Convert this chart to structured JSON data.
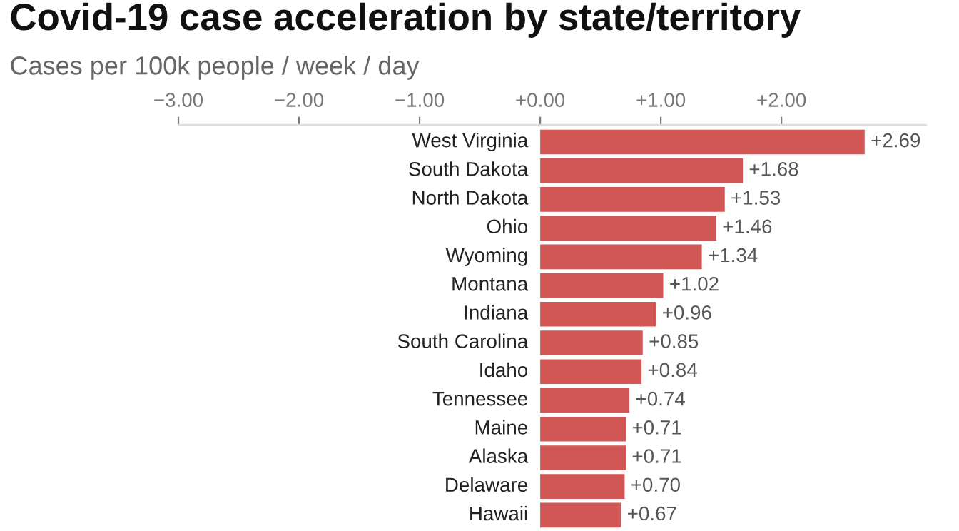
{
  "chart_data": {
    "type": "bar",
    "orientation": "horizontal",
    "title": "Covid-19 case acceleration by state/territory",
    "subtitle": "Cases per 100k people / week / day",
    "categories": [
      "West Virginia",
      "South Dakota",
      "North Dakota",
      "Ohio",
      "Wyoming",
      "Montana",
      "Indiana",
      "South Carolina",
      "Idaho",
      "Tennessee",
      "Maine",
      "Alaska",
      "Delaware",
      "Hawaii"
    ],
    "values": [
      2.69,
      1.68,
      1.53,
      1.46,
      1.34,
      1.02,
      0.96,
      0.85,
      0.84,
      0.74,
      0.71,
      0.71,
      0.7,
      0.67
    ],
    "value_labels": [
      "+2.69",
      "+1.68",
      "+1.53",
      "+1.46",
      "+1.34",
      "+1.02",
      "+0.96",
      "+0.85",
      "+0.84",
      "+0.74",
      "+0.71",
      "+0.71",
      "+0.70",
      "+0.67"
    ],
    "color": "#d15656",
    "xlim": [
      -3.0,
      3.2
    ],
    "xticks": [
      {
        "value": -3,
        "label": "−3.00"
      },
      {
        "value": -2,
        "label": "−2.00"
      },
      {
        "value": -1,
        "label": "−1.00"
      },
      {
        "value": 0,
        "label": "+0.00"
      },
      {
        "value": 1,
        "label": "+1.00"
      },
      {
        "value": 2,
        "label": "+2.00"
      }
    ],
    "grid": false,
    "legend": false
  }
}
